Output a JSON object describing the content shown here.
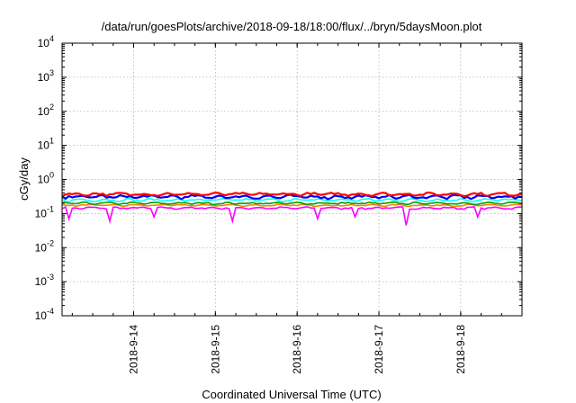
{
  "chart_data": {
    "type": "line",
    "title": "/data/run/goesPlots/archive/2018-09-18/18:00/flux/../bryn/5daysMoon.plot",
    "xlabel": "Coordinated Universal Time (UTC)",
    "ylabel": "cGy/day",
    "yscale": "log",
    "ylim": [
      0.0001,
      10000
    ],
    "y_ticks": [
      {
        "base": "10",
        "exp": "-4",
        "value": 0.0001
      },
      {
        "base": "10",
        "exp": "-3",
        "value": 0.001
      },
      {
        "base": "10",
        "exp": "-2",
        "value": 0.01
      },
      {
        "base": "10",
        "exp": "-1",
        "value": 0.1
      },
      {
        "base": "10",
        "exp": "0",
        "value": 1
      },
      {
        "base": "10",
        "exp": "1",
        "value": 10
      },
      {
        "base": "10",
        "exp": "2",
        "value": 100
      },
      {
        "base": "10",
        "exp": "3",
        "value": 1000
      },
      {
        "base": "10",
        "exp": "4",
        "value": 10000
      }
    ],
    "xlim": [
      "2018-09-13T03:00",
      "2018-09-18T18:00"
    ],
    "x_ticks": [
      "2018-9-14",
      "2018-9-15",
      "2018-9-16",
      "2018-9-17",
      "2018-9-18"
    ],
    "grid": true,
    "series": [
      {
        "color": "#ff0000",
        "base": 0.37,
        "jitter": 0.04,
        "spikes": []
      },
      {
        "color": "#0000ff",
        "base": 0.31,
        "jitter": 0.045,
        "spikes": []
      },
      {
        "color": "#00ffff",
        "base": 0.25,
        "jitter": 0.025,
        "spikes": []
      },
      {
        "color": "#00a000",
        "base": 0.2,
        "jitter": 0.015,
        "spikes": []
      },
      {
        "color": "#ff8000",
        "base": 0.175,
        "jitter": 0.012,
        "spikes": []
      },
      {
        "color": "#ff00ff",
        "base": 0.145,
        "jitter": 0.012,
        "spikes": [
          {
            "t": "2018-09-13T05:00",
            "v": 0.07
          },
          {
            "t": "2018-09-13T17:00",
            "v": 0.06
          },
          {
            "t": "2018-09-14T06:00",
            "v": 0.08
          },
          {
            "t": "2018-09-15T05:00",
            "v": 0.06
          },
          {
            "t": "2018-09-16T06:00",
            "v": 0.07
          },
          {
            "t": "2018-09-16T17:00",
            "v": 0.08
          },
          {
            "t": "2018-09-17T08:00",
            "v": 0.045
          },
          {
            "t": "2018-09-18T05:00",
            "v": 0.08
          }
        ]
      }
    ]
  }
}
